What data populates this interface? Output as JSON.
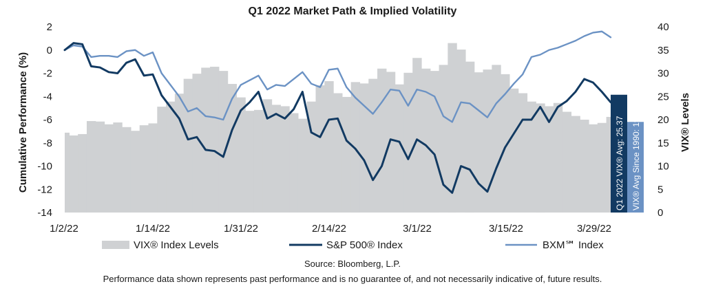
{
  "chart_data": {
    "type": "line",
    "title": "Q1 2022 Market Path & Implied Volatility",
    "ylabel_left": "Cumulative Performance (%)",
    "ylabel_right": "VIX® Levels",
    "ylim_left": [
      -14,
      2
    ],
    "ylim_right": [
      0,
      40
    ],
    "yticks_left": [
      "2",
      "0",
      "-2",
      "-4",
      "-6",
      "-8",
      "-10",
      "-12",
      "-14"
    ],
    "yticks_right": [
      "40",
      "35",
      "30",
      "25",
      "20",
      "15",
      "10",
      "5",
      "0"
    ],
    "xticks": [
      "1/2/22",
      "1/14/22",
      "1/31/22",
      "2/14/22",
      "3/1/22",
      "3/15/22",
      "3/29/22"
    ],
    "x": [
      "12/31/21",
      "1/3/22",
      "1/4/22",
      "1/5/22",
      "1/6/22",
      "1/7/22",
      "1/10/22",
      "1/11/22",
      "1/12/22",
      "1/13/22",
      "1/14/22",
      "1/18/22",
      "1/19/22",
      "1/20/22",
      "1/21/22",
      "1/24/22",
      "1/25/22",
      "1/26/22",
      "1/27/22",
      "1/28/22",
      "1/31/22",
      "2/1/22",
      "2/2/22",
      "2/3/22",
      "2/4/22",
      "2/7/22",
      "2/8/22",
      "2/9/22",
      "2/10/22",
      "2/11/22",
      "2/14/22",
      "2/15/22",
      "2/16/22",
      "2/17/22",
      "2/18/22",
      "2/22/22",
      "2/23/22",
      "2/24/22",
      "2/25/22",
      "2/28/22",
      "3/1/22",
      "3/2/22",
      "3/3/22",
      "3/4/22",
      "3/7/22",
      "3/8/22",
      "3/9/22",
      "3/10/22",
      "3/11/22",
      "3/14/22",
      "3/15/22",
      "3/16/22",
      "3/17/22",
      "3/18/22",
      "3/21/22",
      "3/22/22",
      "3/23/22",
      "3/24/22",
      "3/25/22",
      "3/28/22",
      "3/29/22",
      "3/30/22",
      "3/31/22"
    ],
    "series": [
      {
        "name": "VIX® Index Levels",
        "type": "bar",
        "axis": "right",
        "color": "#cfd1d3",
        "values": [
          17.2,
          16.6,
          16.9,
          19.7,
          19.6,
          19.0,
          19.4,
          18.4,
          17.6,
          18.8,
          19.2,
          22.8,
          23.9,
          25.6,
          28.8,
          29.9,
          31.2,
          31.4,
          30.5,
          27.7,
          24.8,
          21.9,
          22.1,
          24.4,
          23.2,
          22.9,
          21.4,
          20.2,
          23.9,
          27.4,
          28.3,
          25.7,
          24.9,
          28.1,
          27.8,
          28.8,
          31.0,
          30.3,
          27.6,
          30.1,
          33.3,
          31.0,
          30.5,
          31.8,
          36.5,
          35.1,
          32.5,
          30.2,
          30.8,
          31.8,
          29.8,
          26.7,
          25.7,
          23.9,
          23.5,
          22.9,
          23.6,
          21.7,
          20.8,
          20.0,
          19.0,
          19.3,
          20.6
        ]
      },
      {
        "name": "S&P 500® Index",
        "type": "line",
        "axis": "left",
        "color": "#123a62",
        "values": [
          0.0,
          0.6,
          0.5,
          -1.4,
          -1.5,
          -1.9,
          -2.0,
          -1.1,
          -0.8,
          -2.2,
          -2.1,
          -3.9,
          -4.9,
          -5.9,
          -7.7,
          -7.5,
          -8.6,
          -8.7,
          -9.2,
          -6.9,
          -5.2,
          -4.5,
          -3.6,
          -5.9,
          -5.5,
          -5.9,
          -5.1,
          -3.6,
          -7.1,
          -7.5,
          -6.0,
          -5.9,
          -7.8,
          -8.5,
          -9.5,
          -11.2,
          -10.0,
          -7.7,
          -7.9,
          -9.4,
          -7.7,
          -8.2,
          -9.0,
          -11.6,
          -12.3,
          -10.0,
          -10.3,
          -11.5,
          -12.2,
          -10.2,
          -8.4,
          -7.2,
          -6.0,
          -6.0,
          -4.9,
          -6.2,
          -4.9,
          -4.4,
          -3.6,
          -2.5,
          -2.8,
          -3.6,
          -4.5
        ]
      },
      {
        "name": "BXM℠ Index",
        "type": "line",
        "axis": "left",
        "color": "#6b92c4",
        "values": [
          0.0,
          0.4,
          0.3,
          -0.6,
          -0.5,
          -0.5,
          -0.6,
          -0.1,
          0.0,
          -0.5,
          -0.2,
          -2.0,
          -3.0,
          -4.0,
          -5.3,
          -5.0,
          -5.7,
          -5.8,
          -6.0,
          -4.2,
          -3.0,
          -2.6,
          -2.2,
          -3.4,
          -3.0,
          -3.1,
          -2.5,
          -1.9,
          -2.9,
          -3.2,
          -1.7,
          -1.6,
          -3.2,
          -4.1,
          -4.8,
          -5.5,
          -4.5,
          -3.4,
          -3.5,
          -4.8,
          -3.4,
          -3.6,
          -4.0,
          -5.7,
          -6.2,
          -4.5,
          -4.6,
          -5.2,
          -5.8,
          -4.6,
          -3.8,
          -2.9,
          -2.1,
          -0.6,
          -0.4,
          0.0,
          0.2,
          0.5,
          0.8,
          1.2,
          1.5,
          1.6,
          1.1
        ]
      }
    ],
    "ref_bars": [
      {
        "label": "Q1 2022 VIX® Avg: 25.37",
        "value": 25.37,
        "color": "#123a62"
      },
      {
        "label": "VIX® Avg Since 1990: 19.52",
        "value": 19.52,
        "color": "#6b92c4"
      }
    ],
    "legend_position": "bottom",
    "grid": false
  },
  "footer": {
    "source": "Source: Bloomberg, L.P.",
    "disclaimer": "Performance data shown represents past performance and is no guarantee of, and not necessarily indicative of, future results."
  }
}
